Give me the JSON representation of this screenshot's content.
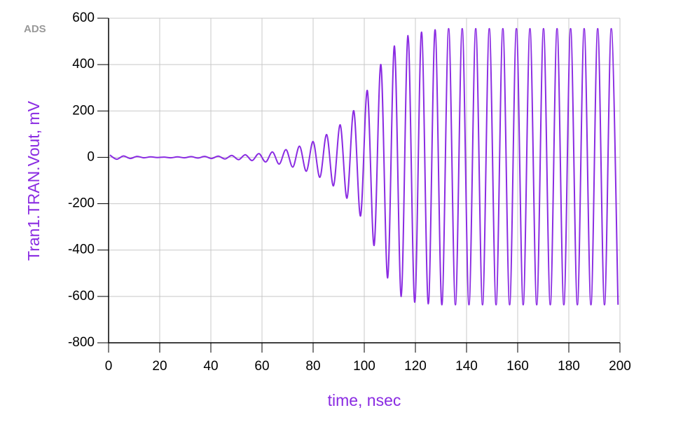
{
  "chart_data": {
    "type": "line",
    "watermark": "ADS",
    "xlabel": "time, nsec",
    "ylabel": "Tran1.TRAN.Vout, mV",
    "x": [
      0.5,
      3.15,
      5.8,
      8.45,
      11.1,
      13.75,
      16.4,
      19.05,
      21.7,
      24.35,
      27,
      29.65,
      32.3,
      34.95,
      37.6,
      40.25,
      42.9,
      45.55,
      48.2,
      50.85,
      53.5,
      56.15,
      58.8,
      61.45,
      64.1,
      66.75,
      69.4,
      72.05,
      74.7,
      77.35,
      80,
      82.65,
      85.3,
      87.95,
      90.6,
      93.25,
      95.9,
      98.55,
      101.2,
      103.85,
      106.5,
      109.15,
      111.8,
      114.45,
      117.1,
      119.75,
      122.4,
      125.05,
      127.7,
      130.35,
      133,
      135.65,
      138.3,
      140.95,
      143.6,
      146.25,
      148.9,
      151.55,
      154.2,
      156.85,
      159.5,
      162.15,
      164.8,
      167.45,
      170.1,
      172.75,
      175.4,
      178.05,
      180.7,
      183.35,
      186,
      188.65,
      191.3,
      193.95,
      196.6,
      199.25
    ],
    "series": [
      {
        "color": "#8a2be2",
        "values": [
          10,
          -8,
          6,
          -5,
          4,
          -2,
          2,
          -1,
          1,
          -2,
          2,
          -2,
          3,
          -3,
          4,
          -5,
          5,
          -7,
          8,
          -10,
          11,
          -14,
          16,
          -20,
          23,
          -29,
          33,
          -42,
          48,
          -60,
          68,
          -86,
          98,
          -123,
          140,
          -176,
          201,
          -253,
          288,
          -380,
          400,
          -520,
          480,
          -600,
          525,
          -625,
          540,
          -632,
          550,
          -636,
          555,
          -636,
          555,
          -636,
          555,
          -636,
          555,
          -636,
          555,
          -636,
          555,
          -636,
          555,
          -636,
          555,
          -636,
          555,
          -636,
          555,
          -636,
          555,
          -636,
          555,
          -636,
          555,
          -636
        ]
      }
    ],
    "xlim": [
      0,
      200
    ],
    "xticks": [
      0,
      20,
      40,
      60,
      80,
      100,
      120,
      140,
      160,
      180,
      200
    ],
    "ylim": [
      -800,
      600
    ],
    "yticks": [
      -800,
      -600,
      -400,
      -200,
      0,
      200,
      400,
      600
    ],
    "grid": true
  }
}
